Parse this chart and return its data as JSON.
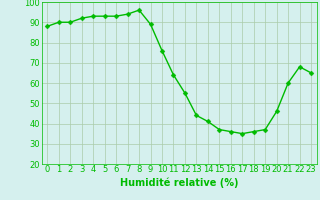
{
  "x": [
    0,
    1,
    2,
    3,
    4,
    5,
    6,
    7,
    8,
    9,
    10,
    11,
    12,
    13,
    14,
    15,
    16,
    17,
    18,
    19,
    20,
    21,
    22,
    23
  ],
  "y": [
    88,
    90,
    90,
    92,
    93,
    93,
    93,
    94,
    96,
    89,
    76,
    64,
    55,
    44,
    41,
    37,
    36,
    35,
    36,
    37,
    46,
    60,
    68,
    65
  ],
  "line_color": "#00bb00",
  "marker_color": "#00bb00",
  "bg_color": "#d5f0ee",
  "grid_color": "#aaccaa",
  "xlabel": "Humidité relative (%)",
  "ylim": [
    20,
    100
  ],
  "xlim": [
    -0.5,
    23.5
  ],
  "yticks": [
    20,
    30,
    40,
    50,
    60,
    70,
    80,
    90,
    100
  ],
  "xticks": [
    0,
    1,
    2,
    3,
    4,
    5,
    6,
    7,
    8,
    9,
    10,
    11,
    12,
    13,
    14,
    15,
    16,
    17,
    18,
    19,
    20,
    21,
    22,
    23
  ],
  "xlabel_color": "#00bb00",
  "tick_color": "#00bb00",
  "axis_color": "#00bb00",
  "font_size_xlabel": 7,
  "font_size_ticks": 6,
  "marker_size": 2.5,
  "line_width": 1.0
}
